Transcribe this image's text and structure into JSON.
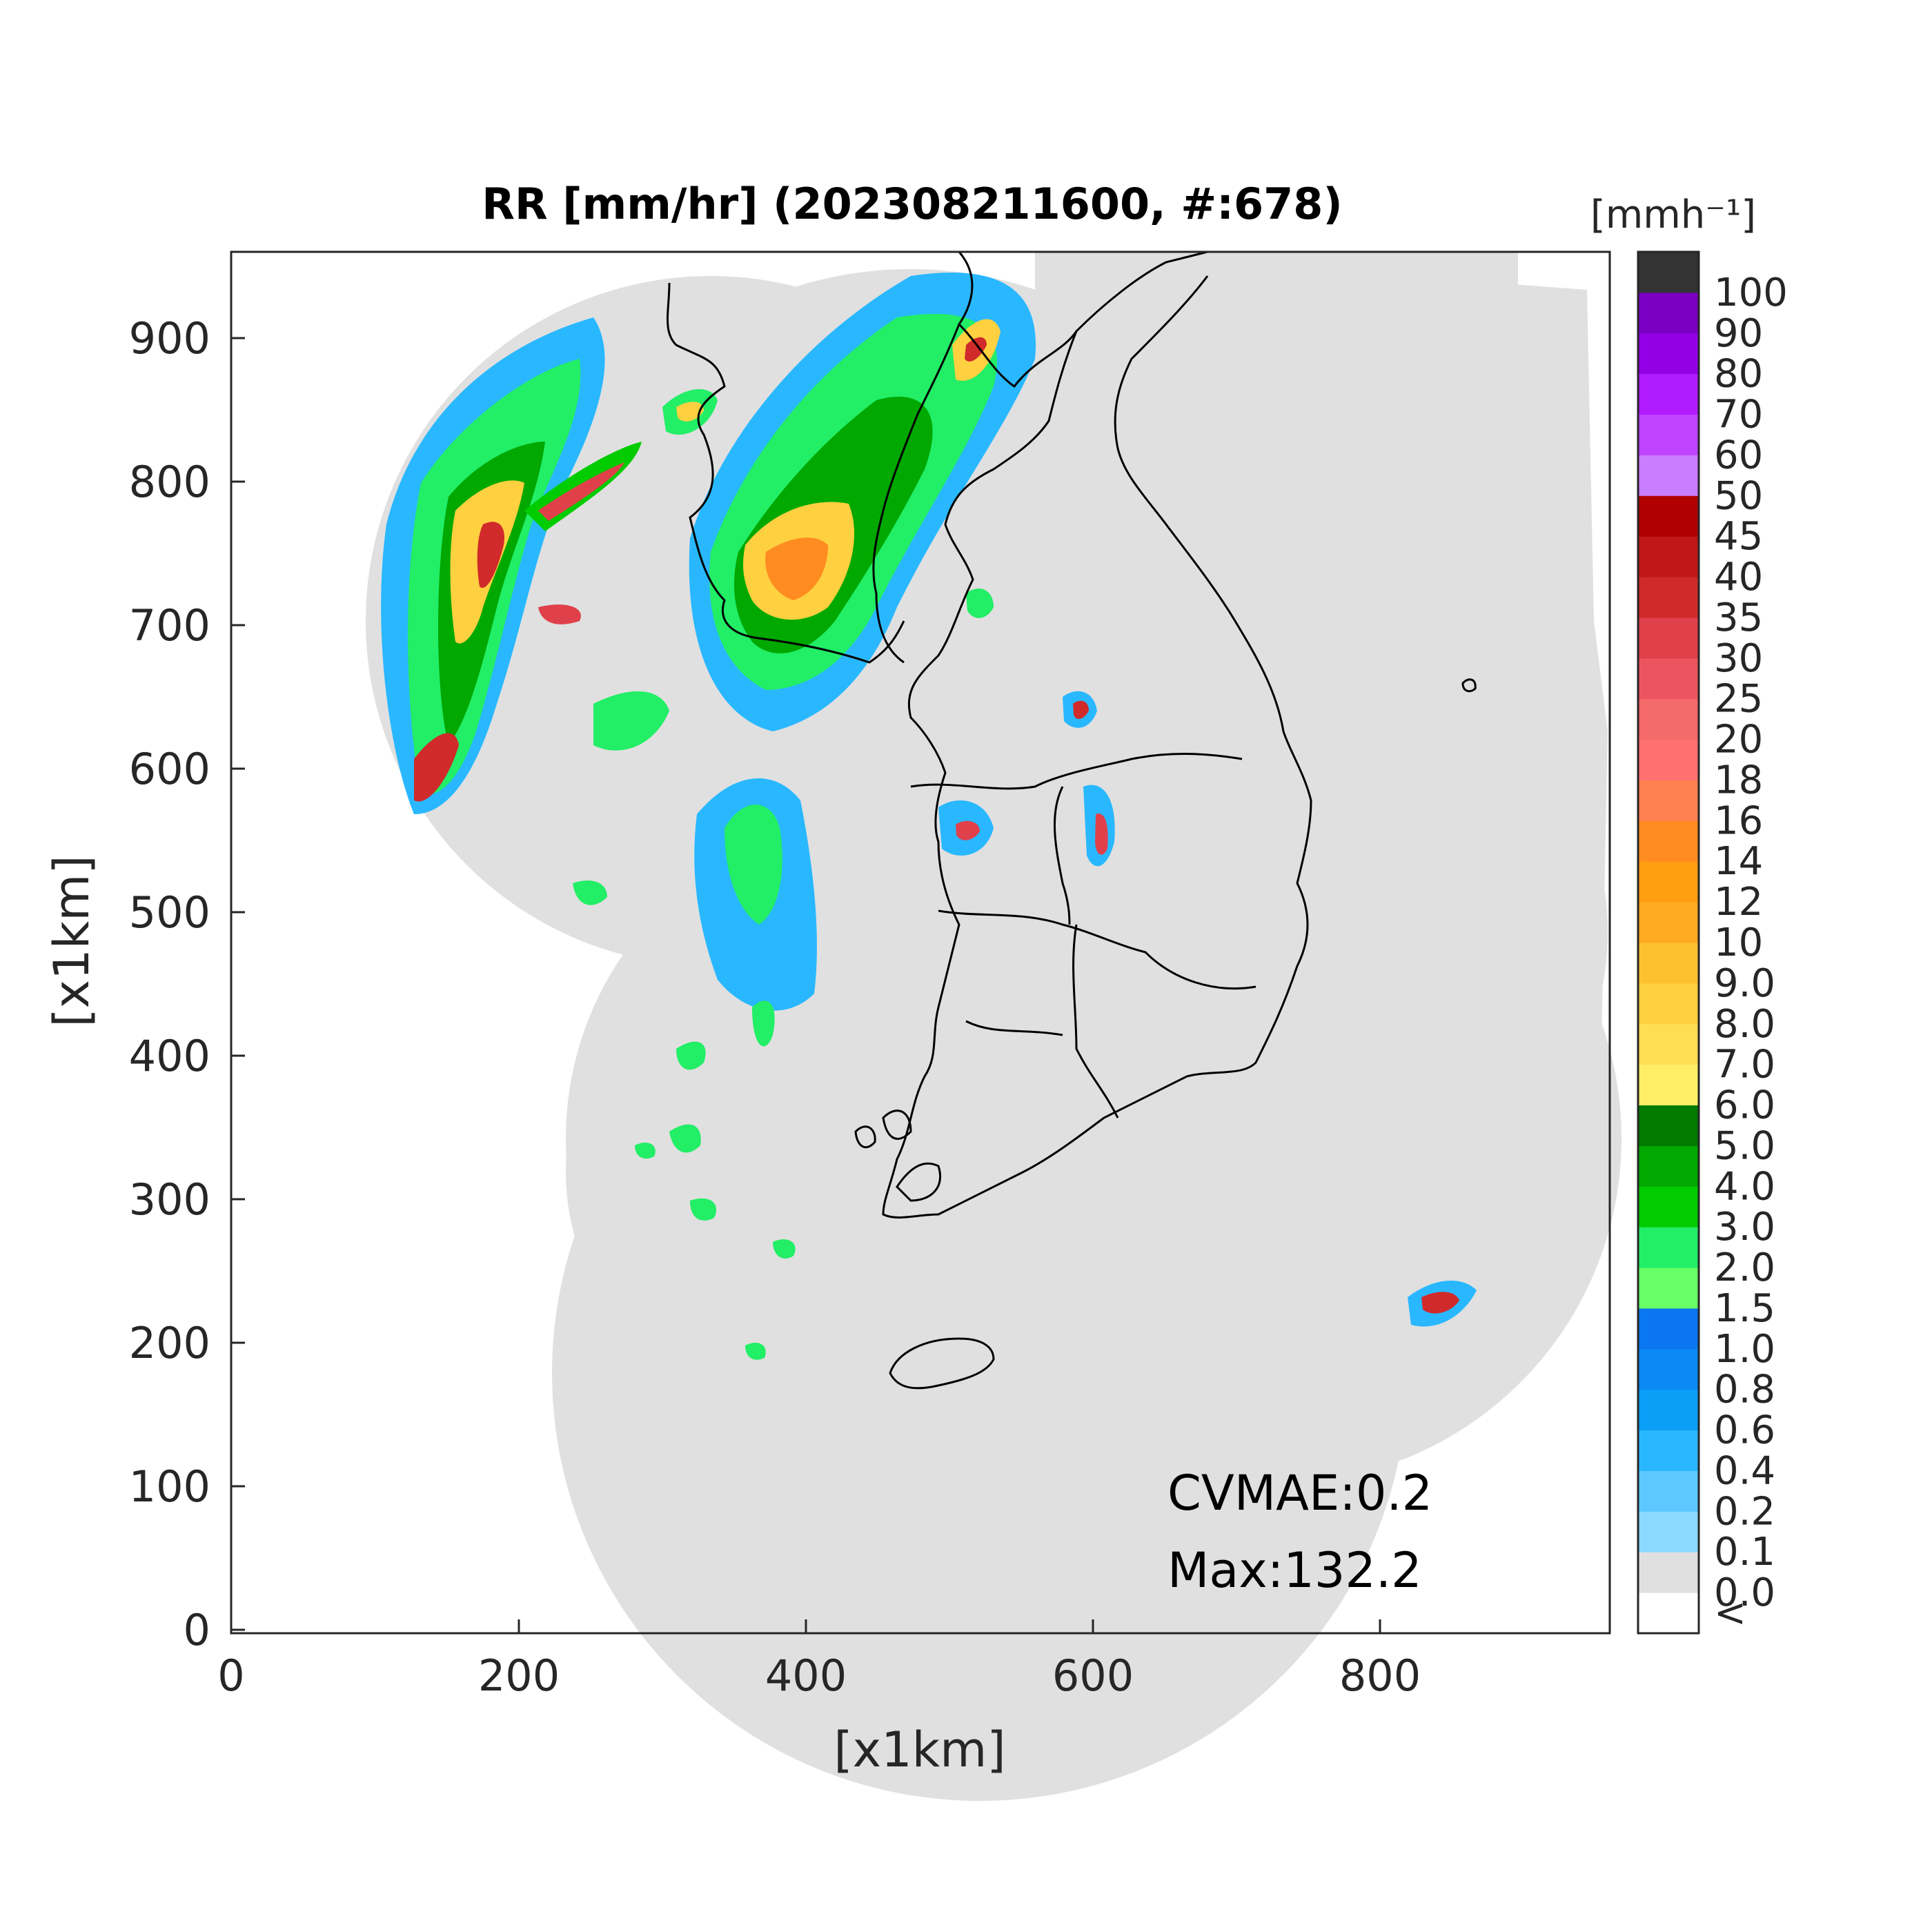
{
  "title": "RR [mm/hr] (202308211600, #:678)",
  "axes": {
    "xlabel": "[x1km]",
    "ylabel": "[x1km]",
    "xlim": [
      0,
      960
    ],
    "ylim": [
      0,
      960
    ],
    "xticks": [
      "0",
      "200",
      "400",
      "600",
      "800"
    ],
    "yticks": [
      "0",
      "100",
      "200",
      "300",
      "400",
      "500",
      "600",
      "700",
      "800",
      "900"
    ]
  },
  "colorbar": {
    "unit_label": "[mmh⁻¹]",
    "tick_labels": [
      "<",
      "0.0",
      "0.1",
      "0.2",
      "0.4",
      "0.6",
      "0.8",
      "1.0",
      "1.5",
      "2.0",
      "3.0",
      "4.0",
      "5.0",
      "6.0",
      "7.0",
      "8.0",
      "9.0",
      "10",
      "12",
      "14",
      "16",
      "18",
      "20",
      "25",
      "30",
      "35",
      "40",
      "45",
      "50",
      "60",
      "70",
      "80",
      "90",
      "100"
    ],
    "colors": [
      "#ffffff",
      "#e0e0e0",
      "#8bd9ff",
      "#5cc8ff",
      "#29b8ff",
      "#0c9ff7",
      "#0a8af2",
      "#0a77f0",
      "#66ff66",
      "#22ee66",
      "#00cc00",
      "#00a800",
      "#007a00",
      "#ffee66",
      "#ffdd55",
      "#ffd040",
      "#ffc030",
      "#ffaa20",
      "#ff9e10",
      "#ff8c20",
      "#ff8050",
      "#ff7070",
      "#f56a6a",
      "#ec5560",
      "#e0404a",
      "#d02a2a",
      "#c01818",
      "#b00000",
      "#c97dff",
      "#c044ff",
      "#b01cff",
      "#9300e6",
      "#7a00c4",
      "#333333"
    ]
  },
  "annotations": {
    "cvmae": "CVMAE:0.2",
    "max": "Max:132.2"
  },
  "colors": {
    "no_rain": "#e0e0e0",
    "outside_coverage": "#ffffff",
    "coastline": "#000000"
  }
}
